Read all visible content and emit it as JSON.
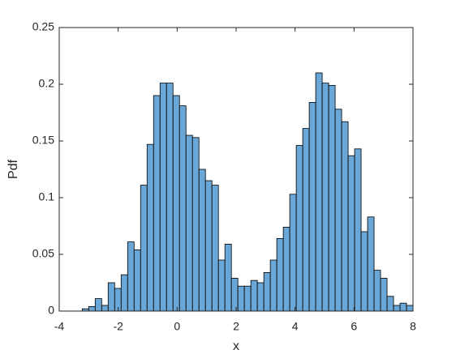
{
  "chart_data": {
    "type": "histogram",
    "xlabel": "x",
    "ylabel": "Pdf",
    "bins": [
      -3.22,
      -3,
      -2.78,
      -2.56,
      -2.34,
      -2.12,
      -1.9,
      -1.68,
      -1.46,
      -1.24,
      -1.02,
      -0.8,
      -0.58,
      -0.36,
      -0.14,
      0.08,
      0.3,
      0.52,
      0.74,
      0.96,
      1.18,
      1.4,
      1.62,
      1.84,
      2.06,
      2.28,
      2.5,
      2.72,
      2.94,
      3.16,
      3.38,
      3.6,
      3.82,
      4.04,
      4.26,
      4.48,
      4.7,
      4.92,
      5.14,
      5.36,
      5.58,
      5.8,
      6.02,
      6.24,
      6.46,
      6.68,
      6.9,
      7.12,
      7.34,
      7.56,
      7.78,
      8.0
    ],
    "values": [
      0.002,
      0.004,
      0.011,
      0.005,
      0.025,
      0.02,
      0.032,
      0.061,
      0.054,
      0.111,
      0.147,
      0.19,
      0.201,
      0.201,
      0.19,
      0.181,
      0.155,
      0.153,
      0.125,
      0.115,
      0.111,
      0.045,
      0.059,
      0.029,
      0.022,
      0.022,
      0.027,
      0.025,
      0.034,
      0.045,
      0.064,
      0.074,
      0.103,
      0.146,
      0.161,
      0.184,
      0.21,
      0.201,
      0.199,
      0.178,
      0.167,
      0.137,
      0.143,
      0.07,
      0.083,
      0.036,
      0.029,
      0.013,
      0.005,
      0.007,
      0.005
    ],
    "color": "#6aa6d6",
    "xlim": [
      -4,
      8
    ],
    "xticks": [
      -4,
      -2,
      0,
      2,
      4,
      6,
      8
    ],
    "ylim": [
      0,
      0.25
    ],
    "yticks": [
      0,
      0.05,
      0.1,
      0.15,
      0.2,
      0.25
    ]
  }
}
